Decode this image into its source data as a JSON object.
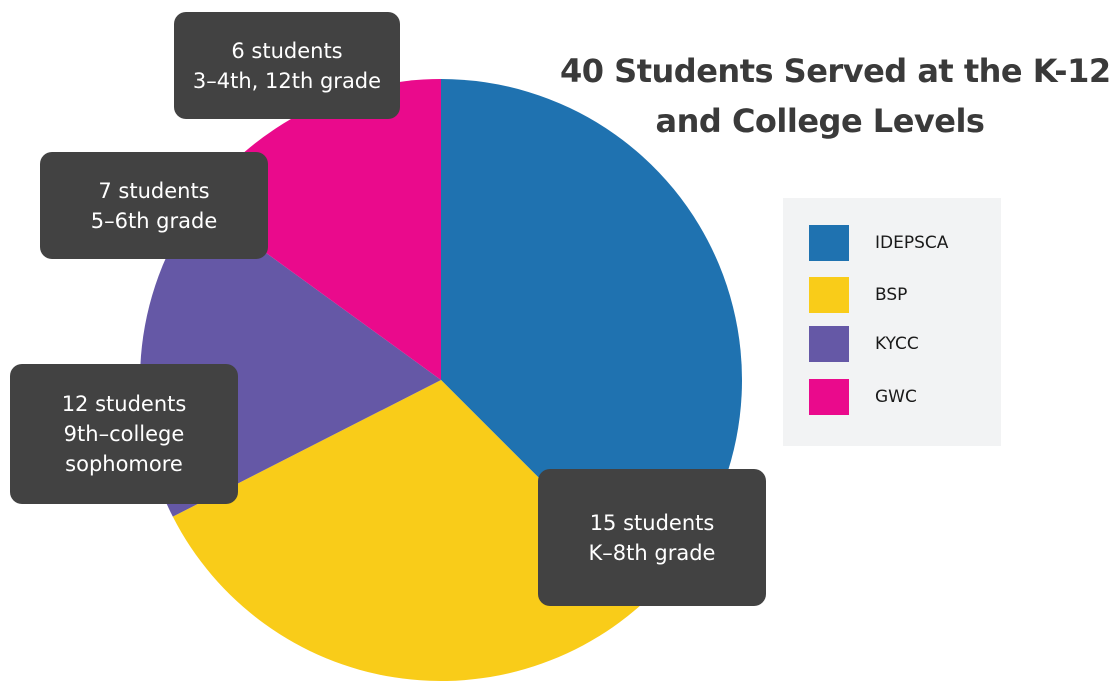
{
  "chart_data": {
    "type": "pie",
    "title_lines": [
      "40 Students Served at the K-12",
      "and College Levels"
    ],
    "slices": [
      {
        "label": "IDEPSCA",
        "value": 15,
        "color": "#1f72b0",
        "annotation": [
          "15 students",
          "K–8th grade"
        ]
      },
      {
        "label": "BSP",
        "value": 12,
        "color": "#f9cc19",
        "annotation": [
          "12 students",
          "9th–college",
          "sophomore"
        ]
      },
      {
        "label": "KYCC",
        "value": 7,
        "color": "#6558a6",
        "annotation": [
          "7 students",
          "5–6th grade"
        ]
      },
      {
        "label": "GWC",
        "value": 6,
        "color": "#ea0a8c",
        "annotation": [
          "6 students",
          "3–4th, 12th grade"
        ]
      }
    ],
    "legend_position": "right"
  }
}
